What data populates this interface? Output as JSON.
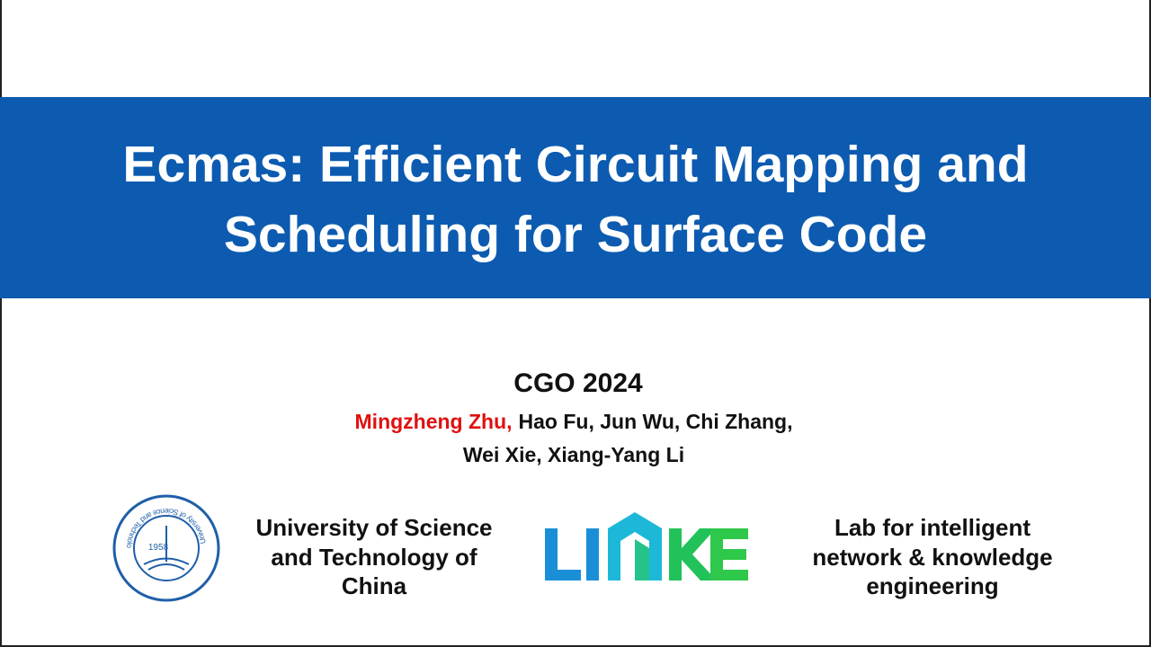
{
  "title": [
    "Ecmas: Efficient Circuit Mapping and",
    "Scheduling for Surface Code"
  ],
  "venue": "CGO 2024",
  "authors": {
    "highlighted": "Mingzheng Zhu,",
    "line1_rest": "Hao Fu, Jun Wu, Chi Zhang,",
    "line2": "Wei Xie, Xiang-Yang Li"
  },
  "affiliations": [
    [
      "University of Science",
      "and Technology of",
      "China"
    ],
    [
      "Lab for intelligent",
      "network & knowledge",
      "engineering"
    ]
  ],
  "seal": {
    "year": "1958",
    "ring_text": "University of Science and Technology of China"
  }
}
